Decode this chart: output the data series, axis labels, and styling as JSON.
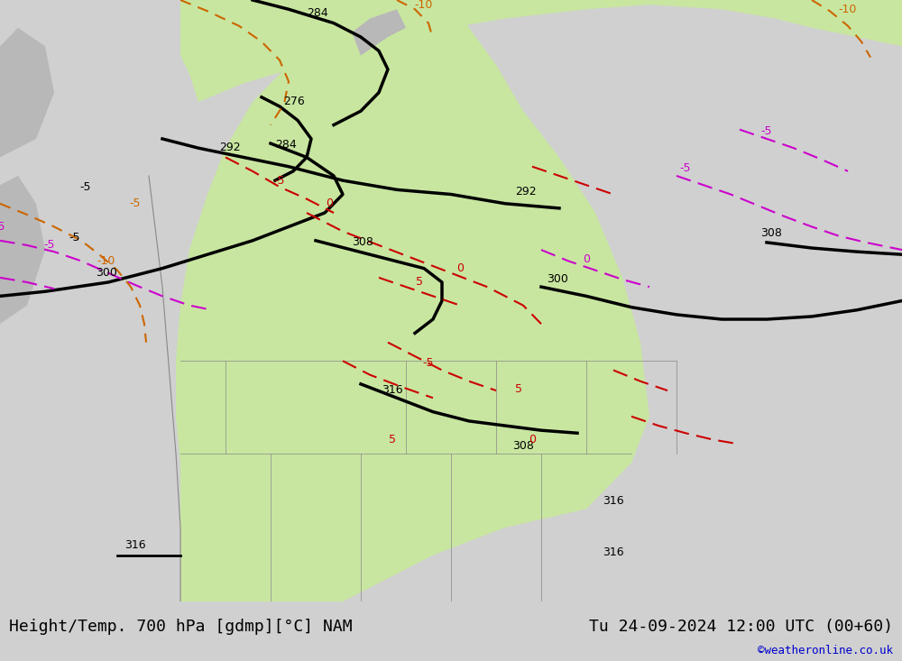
{
  "title_left": "Height/Temp. 700 hPa [gdmp][°C] NAM",
  "title_right": "Tu 24-09-2024 12:00 UTC (00+60)",
  "credit": "©weatheronline.co.uk",
  "bg_color": "#d0d0d0",
  "land_green_color": "#c8e6a0",
  "land_gray_color": "#b8b8b8",
  "ocean_color": "#e8e8e8",
  "contour_black_color": "#000000",
  "contour_red_color": "#cc0000",
  "contour_magenta_color": "#cc00cc",
  "contour_orange_color": "#cc6600",
  "footer_bg": "#e0e0e0",
  "credit_color": "#0000cc",
  "font_size_title": 13,
  "font_size_labels": 9,
  "font_size_credit": 9
}
